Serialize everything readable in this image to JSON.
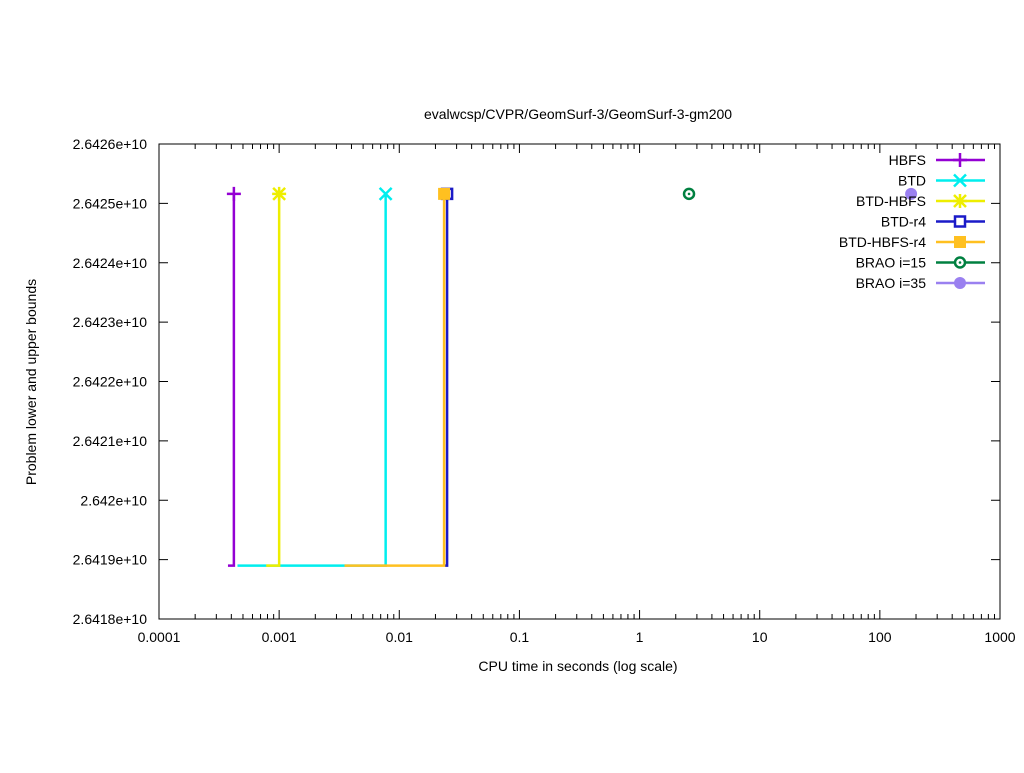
{
  "chart_data": {
    "type": "line",
    "title": "evalwcsp/CVPR/GeomSurf-3/GeomSurf-3-gm200",
    "xlabel": "CPU time in seconds (log scale)",
    "ylabel": "Problem lower and upper bounds",
    "xscale": "log",
    "xlim": [
      0.0001,
      1000
    ],
    "ylim": [
      26418000000,
      26426000000
    ],
    "xticks": [
      0.0001,
      0.001,
      0.01,
      0.1,
      1,
      10,
      100,
      1000
    ],
    "xtick_labels": [
      "0.0001",
      "0.001",
      "0.01",
      "0.1",
      "1",
      "10",
      "100",
      "1000"
    ],
    "yticks": [
      26418000000,
      26419000000,
      26420000000,
      26421000000,
      26422000000,
      26423000000,
      26424000000,
      26425000000,
      26426000000
    ],
    "ytick_labels": [
      "2.6418e+10",
      "2.6419e+10",
      "2.642e+10",
      "2.6421e+10",
      "2.6422e+10",
      "2.6423e+10",
      "2.6424e+10",
      "2.6425e+10",
      "2.6426e+10"
    ],
    "grid": false,
    "legend_position": "top-right",
    "series": [
      {
        "name": "HBFS",
        "color": "#9400d3",
        "marker": "plus",
        "points": [
          [
            0.000375,
            26418900000
          ],
          [
            0.00042,
            26418900000
          ],
          [
            0.00042,
            26425160000
          ]
        ]
      },
      {
        "name": "BTD",
        "color": "#00eeee",
        "marker": "cross",
        "points": [
          [
            0.00045,
            26418900000
          ],
          [
            0.0077,
            26418900000
          ],
          [
            0.0077,
            26425160000
          ]
        ]
      },
      {
        "name": "BTD-HBFS",
        "color": "#eeee00",
        "marker": "star",
        "points": [
          [
            0.00078,
            26418900000
          ],
          [
            0.001,
            26418900000
          ],
          [
            0.001,
            26425160000
          ]
        ]
      },
      {
        "name": "BTD-r4",
        "color": "#1a1ac8",
        "marker": "open-square",
        "points": [
          [
            0.024,
            26418900000
          ],
          [
            0.025,
            26418900000
          ],
          [
            0.025,
            26425160000
          ]
        ]
      },
      {
        "name": "BTD-HBFS-r4",
        "color": "#ffc020",
        "marker": "filled-square",
        "points": [
          [
            0.0035,
            26418900000
          ],
          [
            0.0236,
            26418900000
          ],
          [
            0.0236,
            26425160000
          ]
        ]
      },
      {
        "name": "BRAO i=15",
        "color": "#008040",
        "marker": "open-circle-dot",
        "points": [
          [
            2.58,
            26425160000
          ]
        ]
      },
      {
        "name": "BRAO i=35",
        "color": "#9a80f0",
        "marker": "filled-circle",
        "points": [
          [
            182,
            26425160000
          ]
        ]
      }
    ]
  }
}
